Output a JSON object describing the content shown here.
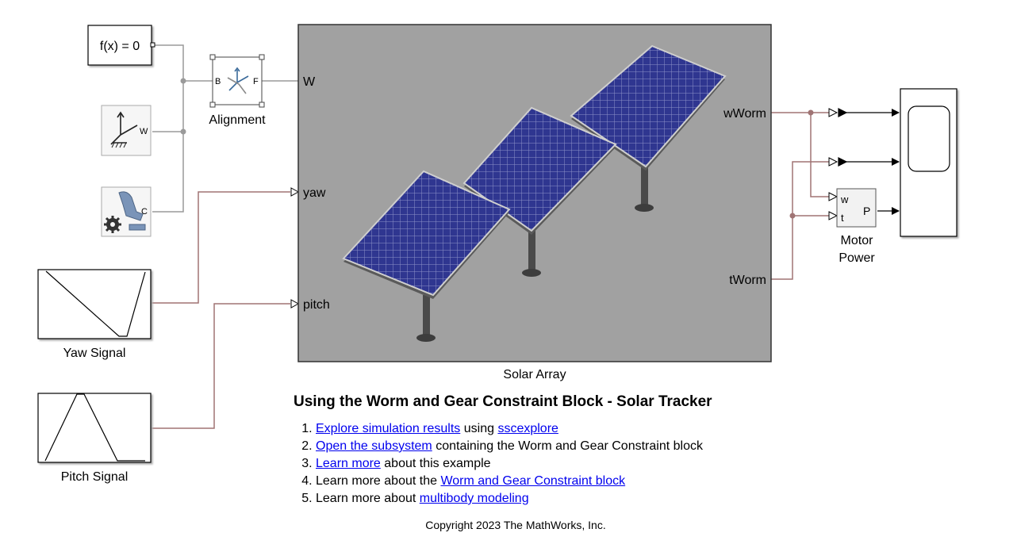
{
  "blocks": {
    "solver": {
      "label": "f(x) = 0"
    },
    "alignment": {
      "label": "Alignment",
      "port_b": "B",
      "port_f": "F"
    },
    "world": {
      "port": "W"
    },
    "mech_config": {
      "port": "C"
    },
    "solar_array": {
      "label": "Solar Array",
      "ports_in": [
        "W",
        "yaw",
        "pitch"
      ],
      "ports_out": [
        "wWorm",
        "tWorm"
      ]
    },
    "yaw_signal": {
      "label": "Yaw Signal"
    },
    "pitch_signal": {
      "label": "Pitch Signal"
    },
    "motor_power": {
      "label_line1": "Motor",
      "label_line2": "Power",
      "port_w": "w",
      "port_t": "t",
      "port_p": "P"
    },
    "scope": {
      "icon": "scope-icon"
    }
  },
  "notes": {
    "title": "Using the Worm and Gear Constraint Block - Solar Tracker",
    "items": [
      {
        "link1": "Explore simulation results",
        "text1": " using ",
        "link2": "sscexplore",
        "text2": ""
      },
      {
        "link1": "Open the subsystem",
        "text1": " containing the Worm and Gear Constraint block"
      },
      {
        "link1": "Learn more",
        "text1": " about this example"
      },
      {
        "pre": "Learn more about the ",
        "link1": "Worm and Gear Constraint block"
      },
      {
        "pre": "Learn more about ",
        "link1": "multibody modeling"
      }
    ]
  },
  "copyright": "Copyright 2023 The MathWorks, Inc.",
  "colors": {
    "physical_line": "#9a9a9a",
    "signal_line": "#a07474",
    "array_bg": "#a0a0a0",
    "panel": "#2d3487",
    "link": "#0000ee"
  }
}
